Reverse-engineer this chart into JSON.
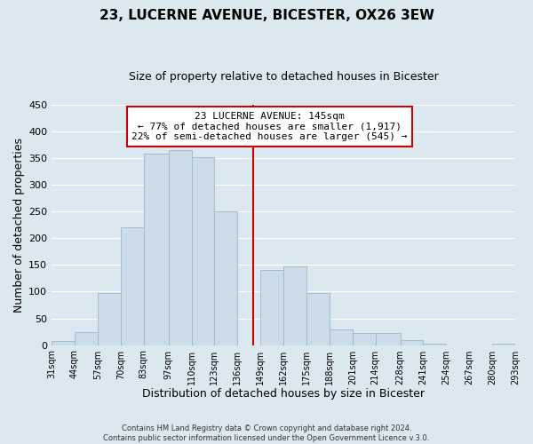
{
  "title": "23, LUCERNE AVENUE, BICESTER, OX26 3EW",
  "subtitle": "Size of property relative to detached houses in Bicester",
  "xlabel": "Distribution of detached houses by size in Bicester",
  "ylabel": "Number of detached properties",
  "footer_lines": [
    "Contains HM Land Registry data © Crown copyright and database right 2024.",
    "Contains public sector information licensed under the Open Government Licence v.3.0."
  ],
  "bar_edges": [
    31,
    44,
    57,
    70,
    83,
    97,
    110,
    123,
    136,
    149,
    162,
    175,
    188,
    201,
    214,
    228,
    241,
    254,
    267,
    280,
    293
  ],
  "bar_heights": [
    8,
    25,
    98,
    220,
    358,
    365,
    352,
    250,
    0,
    140,
    148,
    97,
    30,
    22,
    22,
    10,
    2,
    0,
    0,
    3
  ],
  "bar_color": "#ccdce8",
  "bar_edgecolor": "#a0bcd0",
  "property_size": 145,
  "vline_color": "#cc0000",
  "annotation_title": "23 LUCERNE AVENUE: 145sqm",
  "annotation_line1": "← 77% of detached houses are smaller (1,917)",
  "annotation_line2": "22% of semi-detached houses are larger (545) →",
  "annotation_box_facecolor": "#ffffff",
  "annotation_box_edgecolor": "#cc0000",
  "ylim": [
    0,
    450
  ],
  "xlim": [
    31,
    293
  ],
  "tick_labels": [
    "31sqm",
    "44sqm",
    "57sqm",
    "70sqm",
    "83sqm",
    "97sqm",
    "110sqm",
    "123sqm",
    "136sqm",
    "149sqm",
    "162sqm",
    "175sqm",
    "188sqm",
    "201sqm",
    "214sqm",
    "228sqm",
    "241sqm",
    "254sqm",
    "267sqm",
    "280sqm",
    "293sqm"
  ],
  "background_color": "#dce8f0",
  "grid_color": "#ffffff",
  "title_fontsize": 11,
  "subtitle_fontsize": 9,
  "yticks": [
    0,
    50,
    100,
    150,
    200,
    250,
    300,
    350,
    400,
    450
  ]
}
